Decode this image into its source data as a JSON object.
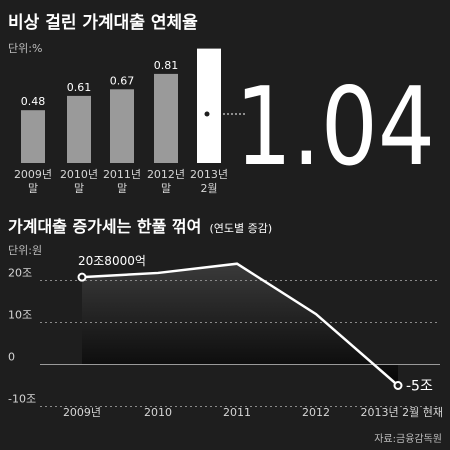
{
  "chart_data": [
    {
      "type": "bar",
      "title": "비상 걸린 가계대출 연체율",
      "unit_label": "단위:%",
      "categories": [
        [
          "2009년",
          "말"
        ],
        [
          "2010년",
          "말"
        ],
        [
          "2011년",
          "말"
        ],
        [
          "2012년",
          "말"
        ],
        [
          "2013년",
          "2월"
        ]
      ],
      "values": [
        0.48,
        0.61,
        0.67,
        0.81,
        1.04
      ],
      "value_labels": [
        "0.48",
        "0.61",
        "0.67",
        "0.81",
        "1.04"
      ],
      "highlight_index": 4,
      "ylim": [
        0,
        1.1
      ],
      "colors": {
        "bar": "#9a9a9a",
        "highlight": "#ffffff"
      }
    },
    {
      "type": "area",
      "title": "가계대출 증가세는 한풀 꺾여",
      "title_suffix": "(연도별 증감)",
      "unit_label": "단위:원",
      "x": [
        "2009년",
        "2010",
        "2011",
        "2012",
        "2013년 2월 현재"
      ],
      "values": [
        20.8,
        21.8,
        24.0,
        12.0,
        -5
      ],
      "value_labels": [
        {
          "index": 0,
          "text": "20조8000억"
        },
        {
          "index": 4,
          "text": "-5조"
        }
      ],
      "yticks": [
        {
          "value": 20,
          "label": "20조"
        },
        {
          "value": 10,
          "label": "10조"
        },
        {
          "value": 0,
          "label": "0"
        },
        {
          "value": -10,
          "label": "-10조"
        }
      ],
      "ylim": [
        -10,
        25
      ],
      "source": "자료:금융감독원"
    }
  ]
}
